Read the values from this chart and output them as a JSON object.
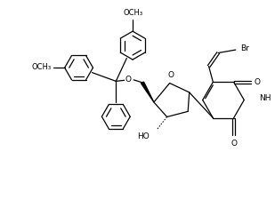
{
  "bg_color": "#ffffff",
  "line_color": "#000000",
  "line_width": 0.9,
  "font_size": 6.5,
  "fig_width": 3.09,
  "fig_height": 2.25,
  "dpi": 100,
  "xlim": [
    0,
    10
  ],
  "ylim": [
    0,
    7.3
  ]
}
